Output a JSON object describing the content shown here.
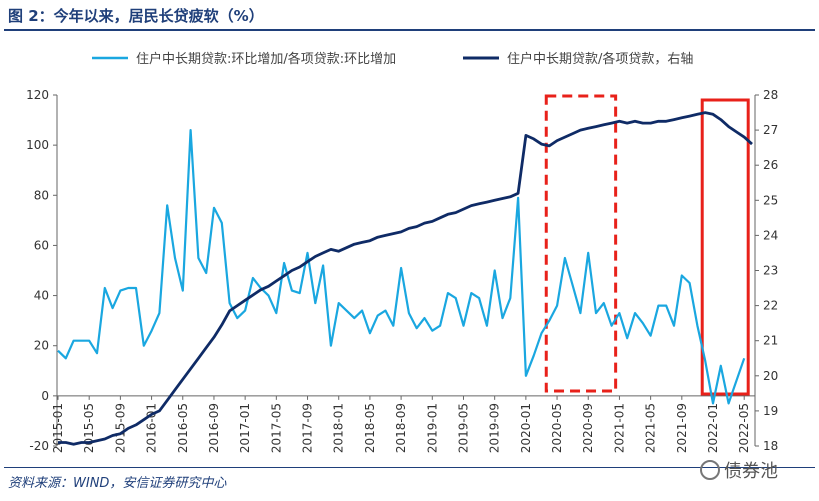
{
  "header": {
    "title": "图 2：今年以来，居民长贷疲软（%）"
  },
  "footer": {
    "source": "资料来源：WIND，安信证券研究中心",
    "watermark": "债券池"
  },
  "chart_data": {
    "type": "line",
    "title": "图 2：今年以来，居民长贷疲软（%）",
    "xlabel": "",
    "ylabel": "",
    "categories": [
      "2015-01",
      "2015-02",
      "2015-03",
      "2015-04",
      "2015-05",
      "2015-06",
      "2015-07",
      "2015-08",
      "2015-09",
      "2015-10",
      "2015-11",
      "2015-12",
      "2016-01",
      "2016-02",
      "2016-03",
      "2016-04",
      "2016-05",
      "2016-06",
      "2016-07",
      "2016-08",
      "2016-09",
      "2016-10",
      "2016-11",
      "2016-12",
      "2017-01",
      "2017-02",
      "2017-03",
      "2017-04",
      "2017-05",
      "2017-06",
      "2017-07",
      "2017-08",
      "2017-09",
      "2017-10",
      "2017-11",
      "2017-12",
      "2018-01",
      "2018-02",
      "2018-03",
      "2018-04",
      "2018-05",
      "2018-06",
      "2018-07",
      "2018-08",
      "2018-09",
      "2018-10",
      "2018-11",
      "2018-12",
      "2019-01",
      "2019-02",
      "2019-03",
      "2019-04",
      "2019-05",
      "2019-06",
      "2019-07",
      "2019-08",
      "2019-09",
      "2019-10",
      "2019-11",
      "2019-12",
      "2020-01",
      "2020-02",
      "2020-03",
      "2020-04",
      "2020-05",
      "2020-06",
      "2020-07",
      "2020-08",
      "2020-09",
      "2020-10",
      "2020-11",
      "2020-12",
      "2021-01",
      "2021-02",
      "2021-03",
      "2021-04",
      "2021-05",
      "2021-06",
      "2021-07",
      "2021-08",
      "2021-09",
      "2021-10",
      "2021-11",
      "2021-12",
      "2022-01",
      "2022-02",
      "2022-03",
      "2022-04",
      "2022-05",
      "2022-06"
    ],
    "x_tick_labels": [
      "2015-01",
      "2015-05",
      "2015-09",
      "2016-01",
      "2016-05",
      "2016-09",
      "2017-01",
      "2017-05",
      "2017-09",
      "2018-01",
      "2018-05",
      "2018-09",
      "2019-01",
      "2019-05",
      "2019-09",
      "2020-01",
      "2020-05",
      "2020-09",
      "2021-01",
      "2021-05",
      "2021-09",
      "2022-01",
      "2022-05"
    ],
    "left_axis": {
      "range": [
        -20,
        120
      ],
      "ticks": [
        -20,
        0,
        20,
        40,
        60,
        80,
        100,
        120
      ]
    },
    "right_axis": {
      "range": [
        18,
        28
      ],
      "ticks": [
        18,
        19,
        20,
        21,
        22,
        23,
        24,
        25,
        26,
        27,
        28
      ]
    },
    "legend_position": "top",
    "series": [
      {
        "name": "住户中长期贷款:环比增加/各项贷款:环比增加",
        "axis": "left",
        "color": "#1aa7e0",
        "values": [
          18,
          15,
          22,
          22,
          22,
          17,
          43,
          35,
          42,
          43,
          43,
          20,
          26,
          33,
          76,
          55,
          42,
          106,
          55,
          49,
          75,
          69,
          37,
          31,
          34,
          47,
          43,
          40,
          33,
          53,
          42,
          41,
          57,
          37,
          52,
          20,
          37,
          34,
          31,
          34,
          25,
          32,
          34,
          28,
          51,
          33,
          27,
          31,
          26,
          28,
          41,
          39,
          28,
          41,
          39,
          28,
          50,
          31,
          39,
          79,
          8,
          16,
          25,
          30,
          36,
          55,
          44,
          33,
          57,
          33,
          37,
          28,
          33,
          23,
          33,
          29,
          24,
          36,
          36,
          28,
          48,
          45,
          28,
          14,
          -3,
          12,
          -3,
          6,
          15,
          null
        ],
        "annotation": null
      },
      {
        "name": "住户中长期贷款/各项贷款，右轴",
        "axis": "right",
        "color": "#0f2b66",
        "values": [
          18.1,
          18.1,
          18.05,
          18.1,
          18.1,
          18.15,
          18.2,
          18.3,
          18.35,
          18.5,
          18.6,
          18.75,
          18.9,
          19.0,
          19.3,
          19.6,
          19.9,
          20.2,
          20.5,
          20.8,
          21.1,
          21.45,
          21.85,
          22.0,
          22.15,
          22.3,
          22.45,
          22.55,
          22.7,
          22.85,
          23.0,
          23.1,
          23.25,
          23.4,
          23.5,
          23.6,
          23.55,
          23.65,
          23.75,
          23.8,
          23.85,
          23.95,
          24.0,
          24.05,
          24.1,
          24.2,
          24.25,
          24.35,
          24.4,
          24.5,
          24.6,
          24.65,
          24.75,
          24.85,
          24.9,
          24.95,
          25.0,
          25.05,
          25.1,
          25.2,
          26.85,
          26.75,
          26.6,
          26.55,
          26.7,
          26.8,
          26.9,
          27.0,
          27.05,
          27.1,
          27.15,
          27.2,
          27.25,
          27.2,
          27.25,
          27.2,
          27.2,
          27.25,
          27.25,
          27.3,
          27.35,
          27.4,
          27.45,
          27.5,
          27.45,
          27.3,
          27.1,
          26.95,
          26.8,
          26.6
        ],
        "annotation": null
      }
    ],
    "highlights": [
      {
        "style": "dashed",
        "color": "#e8211a",
        "from": "2020-04",
        "to": "2020-12"
      },
      {
        "style": "solid",
        "color": "#e8211a",
        "from": "2021-12",
        "to": "2022-05"
      }
    ]
  }
}
